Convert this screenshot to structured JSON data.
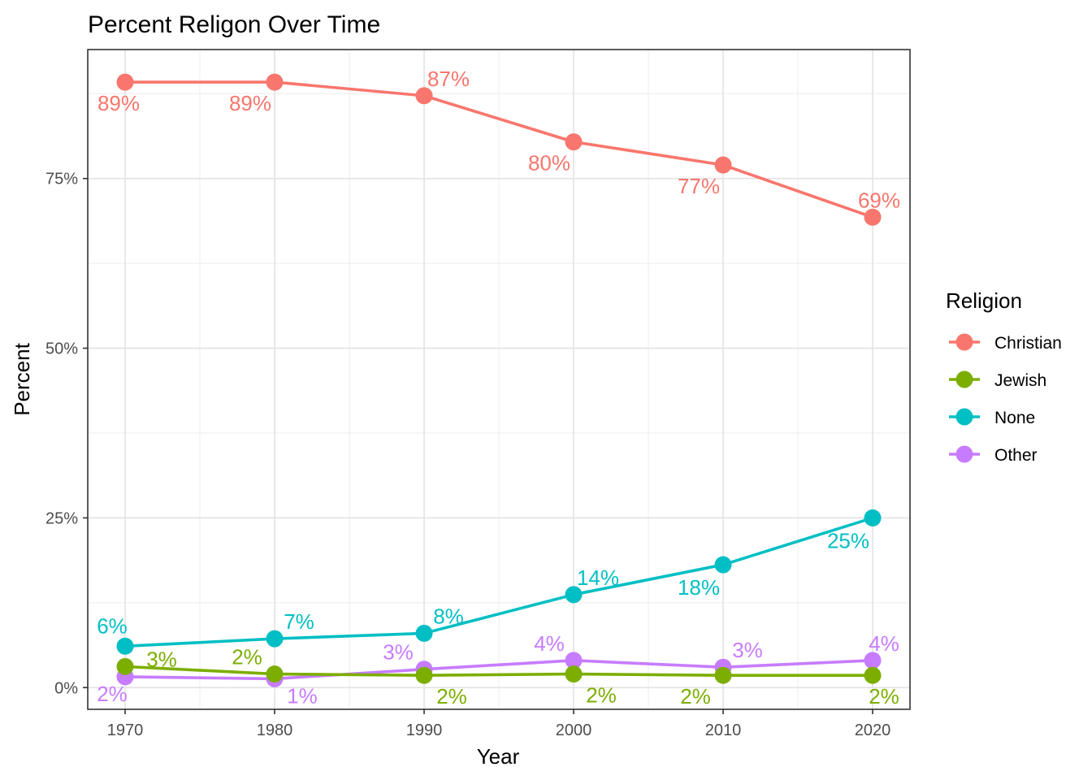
{
  "chart_data": {
    "type": "line",
    "title": "Percent Religon Over Time",
    "xlabel": "Year",
    "ylabel": "Percent",
    "x": [
      1970,
      1980,
      1990,
      2000,
      2010,
      2020
    ],
    "xlim": [
      1967.5,
      2022.5
    ],
    "ylim": [
      -3.2,
      94.0
    ],
    "y_ticks": [
      {
        "value": 0,
        "label": "0%"
      },
      {
        "value": 25,
        "label": "25%"
      },
      {
        "value": 50,
        "label": "50%"
      },
      {
        "value": 75,
        "label": "75%"
      }
    ],
    "x_ticks": [
      {
        "value": 1970,
        "label": "1970"
      },
      {
        "value": 1980,
        "label": "1980"
      },
      {
        "value": 1990,
        "label": "1990"
      },
      {
        "value": 2000,
        "label": "2000"
      },
      {
        "value": 2010,
        "label": "2010"
      },
      {
        "value": 2020,
        "label": "2020"
      }
    ],
    "grid": true,
    "legend": {
      "title": "Religion",
      "position": "right"
    },
    "series": [
      {
        "name": "Christian",
        "color": "#F8766D",
        "values": [
          89.2,
          89.2,
          87.2,
          80.4,
          77.0,
          69.3
        ],
        "labels": [
          "89%",
          "89%",
          "87%",
          "80%",
          "77%",
          "69%"
        ]
      },
      {
        "name": "Jewish",
        "color": "#7CAE00",
        "values": [
          3.1,
          2.0,
          1.8,
          2.0,
          1.8,
          1.8
        ],
        "labels": [
          "3%",
          "2%",
          "2%",
          "2%",
          "2%",
          "2%"
        ]
      },
      {
        "name": "None",
        "color": "#00BFC4",
        "values": [
          6.1,
          7.2,
          8.0,
          13.7,
          18.1,
          25.0
        ],
        "labels": [
          "6%",
          "7%",
          "8%",
          "14%",
          "18%",
          "25%"
        ]
      },
      {
        "name": "Other",
        "color": "#C77CFF",
        "values": [
          1.6,
          1.3,
          2.7,
          4.0,
          3.0,
          4.0
        ],
        "labels": [
          "2%",
          "1%",
          "3%",
          "4%",
          "3%",
          "4%"
        ]
      }
    ]
  }
}
